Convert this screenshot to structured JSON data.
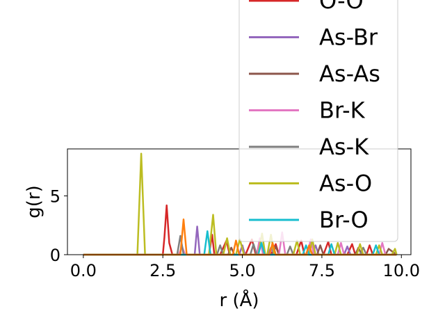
{
  "chart_data": {
    "type": "line",
    "title": "",
    "xlabel": "r (Å)",
    "ylabel": "g(r)",
    "xlim": [
      -0.5,
      10.3
    ],
    "ylim": [
      0,
      9.0
    ],
    "xticks": [
      0.0,
      2.5,
      5.0,
      7.5,
      10.0
    ],
    "xtick_labels": [
      "0.0",
      "2.5",
      "5.0",
      "7.5",
      "10.0"
    ],
    "yticks": [
      0,
      5
    ],
    "ytick_labels": [
      "0",
      "5"
    ],
    "grid": false,
    "legend_position": "upper-right",
    "series": [
      {
        "name": "O-O",
        "color": "#d62728",
        "points": [
          [
            0,
            0
          ],
          [
            2.5,
            0
          ],
          [
            2.55,
            1.5
          ],
          [
            2.62,
            4.2
          ],
          [
            2.7,
            1.0
          ],
          [
            2.8,
            0
          ],
          [
            3.95,
            0
          ],
          [
            4.05,
            1.7
          ],
          [
            4.12,
            0
          ],
          [
            4.3,
            0
          ],
          [
            4.5,
            1.2
          ],
          [
            4.6,
            0
          ],
          [
            5.1,
            0
          ],
          [
            5.3,
            1.3
          ],
          [
            5.42,
            0
          ],
          [
            5.9,
            0
          ],
          [
            6.05,
            0.9
          ],
          [
            6.15,
            0
          ],
          [
            6.7,
            0
          ],
          [
            6.85,
            1.2
          ],
          [
            6.95,
            0
          ],
          [
            7.55,
            0
          ],
          [
            7.7,
            1.1
          ],
          [
            7.8,
            0
          ],
          [
            8.3,
            0
          ],
          [
            8.45,
            0.9
          ],
          [
            8.55,
            0
          ],
          [
            8.9,
            0
          ],
          [
            9.0,
            0.8
          ],
          [
            9.1,
            0
          ],
          [
            9.85,
            0
          ]
        ]
      },
      {
        "name": "As-Br",
        "color": "#9467bd",
        "points": [
          [
            0,
            0
          ],
          [
            3.5,
            0
          ],
          [
            3.58,
            2.4
          ],
          [
            3.66,
            0
          ],
          [
            4.9,
            0
          ],
          [
            5.0,
            0.8
          ],
          [
            5.08,
            0
          ],
          [
            5.8,
            0
          ],
          [
            5.9,
            0.6
          ],
          [
            6.0,
            0
          ],
          [
            7.2,
            0
          ],
          [
            7.3,
            0.8
          ],
          [
            7.4,
            0
          ],
          [
            8.2,
            0
          ],
          [
            8.3,
            0.7
          ],
          [
            8.4,
            0
          ],
          [
            9.85,
            0
          ]
        ]
      },
      {
        "name": "As-As",
        "color": "#8c564b",
        "points": [
          [
            0,
            0
          ],
          [
            4.55,
            0
          ],
          [
            4.65,
            0.6
          ],
          [
            4.75,
            0
          ],
          [
            5.95,
            0
          ],
          [
            6.05,
            0.7
          ],
          [
            6.15,
            0
          ],
          [
            7.35,
            0
          ],
          [
            7.45,
            0.8
          ],
          [
            7.55,
            0
          ],
          [
            8.55,
            0
          ],
          [
            8.65,
            0.6
          ],
          [
            8.75,
            0
          ],
          [
            9.5,
            0
          ],
          [
            9.6,
            0.5
          ],
          [
            9.85,
            0
          ]
        ]
      },
      {
        "name": "Br-K",
        "color": "#e377c2",
        "points": [
          [
            0,
            0
          ],
          [
            3.0,
            0
          ],
          [
            3.1,
            0.7
          ],
          [
            3.2,
            0
          ],
          [
            5.45,
            0
          ],
          [
            5.55,
            1.4
          ],
          [
            5.65,
            0
          ],
          [
            6.15,
            0
          ],
          [
            6.25,
            1.9
          ],
          [
            6.35,
            0
          ],
          [
            7.05,
            0
          ],
          [
            7.15,
            1.3
          ],
          [
            7.25,
            0
          ],
          [
            8.0,
            0
          ],
          [
            8.1,
            1.0
          ],
          [
            8.2,
            0
          ],
          [
            9.3,
            0
          ],
          [
            9.4,
            1.0
          ],
          [
            9.5,
            0
          ],
          [
            9.85,
            0
          ]
        ]
      },
      {
        "name": "As-K",
        "color": "#7f7f7f",
        "points": [
          [
            0,
            0
          ],
          [
            2.95,
            0
          ],
          [
            3.05,
            1.6
          ],
          [
            3.15,
            0
          ],
          [
            4.2,
            0
          ],
          [
            4.3,
            0.8
          ],
          [
            4.4,
            0
          ],
          [
            5.25,
            0
          ],
          [
            5.35,
            0.9
          ],
          [
            5.45,
            0
          ],
          [
            6.4,
            0
          ],
          [
            6.5,
            0.7
          ],
          [
            6.6,
            0
          ],
          [
            8.7,
            0
          ],
          [
            8.8,
            0.6
          ],
          [
            8.9,
            0
          ],
          [
            9.85,
            0
          ]
        ]
      },
      {
        "name": "As-O",
        "color": "#bcbd22",
        "points": [
          [
            0,
            0
          ],
          [
            1.7,
            0
          ],
          [
            1.82,
            8.6
          ],
          [
            1.94,
            0
          ],
          [
            3.95,
            0
          ],
          [
            4.08,
            3.4
          ],
          [
            4.18,
            0
          ],
          [
            4.4,
            0
          ],
          [
            4.52,
            1.4
          ],
          [
            4.62,
            0
          ],
          [
            4.8,
            0
          ],
          [
            4.92,
            1.3
          ],
          [
            5.05,
            0
          ],
          [
            5.5,
            0
          ],
          [
            5.62,
            1.8
          ],
          [
            5.72,
            0
          ],
          [
            5.78,
            0
          ],
          [
            5.9,
            1.7
          ],
          [
            6.0,
            0
          ],
          [
            6.6,
            0
          ],
          [
            6.72,
            1.2
          ],
          [
            6.82,
            0
          ],
          [
            7.1,
            0
          ],
          [
            7.2,
            1.3
          ],
          [
            7.3,
            0
          ],
          [
            7.9,
            0
          ],
          [
            8.0,
            1.0
          ],
          [
            8.1,
            0
          ],
          [
            8.6,
            0
          ],
          [
            8.7,
            0.9
          ],
          [
            8.8,
            0
          ],
          [
            9.2,
            0
          ],
          [
            9.3,
            0.8
          ],
          [
            9.4,
            0
          ],
          [
            9.7,
            0
          ],
          [
            9.8,
            0.5
          ],
          [
            9.85,
            0
          ]
        ]
      },
      {
        "name": "Br-O",
        "color": "#17becf",
        "points": [
          [
            0,
            0
          ],
          [
            3.8,
            0
          ],
          [
            3.9,
            2.0
          ],
          [
            4.0,
            0
          ],
          [
            5.5,
            0
          ],
          [
            5.6,
            1.0
          ],
          [
            5.7,
            0
          ],
          [
            6.9,
            0
          ],
          [
            7.0,
            0.8
          ],
          [
            7.1,
            0
          ],
          [
            7.7,
            0
          ],
          [
            7.8,
            0.9
          ],
          [
            7.9,
            0
          ],
          [
            9.1,
            0
          ],
          [
            9.2,
            0.8
          ],
          [
            9.3,
            0
          ],
          [
            9.85,
            0
          ]
        ]
      },
      {
        "name": "",
        "color": "#ff7f0e",
        "points": [
          [
            0,
            0
          ],
          [
            3.05,
            0
          ],
          [
            3.15,
            3.0
          ],
          [
            3.25,
            0
          ],
          [
            4.7,
            0
          ],
          [
            4.8,
            1.2
          ],
          [
            4.9,
            0
          ],
          [
            5.85,
            0
          ],
          [
            5.95,
            1.0
          ],
          [
            6.05,
            0
          ],
          [
            7.0,
            0
          ],
          [
            7.1,
            0.8
          ],
          [
            7.2,
            0
          ],
          [
            9.85,
            0
          ]
        ]
      }
    ],
    "legend_entries": [
      {
        "label": "O-O",
        "color": "#d62728"
      },
      {
        "label": "As-Br",
        "color": "#9467bd"
      },
      {
        "label": "As-As",
        "color": "#8c564b"
      },
      {
        "label": "Br-K",
        "color": "#e377c2"
      },
      {
        "label": "As-K",
        "color": "#7f7f7f"
      },
      {
        "label": "As-O",
        "color": "#bcbd22"
      },
      {
        "label": "Br-O",
        "color": "#17becf"
      }
    ]
  }
}
